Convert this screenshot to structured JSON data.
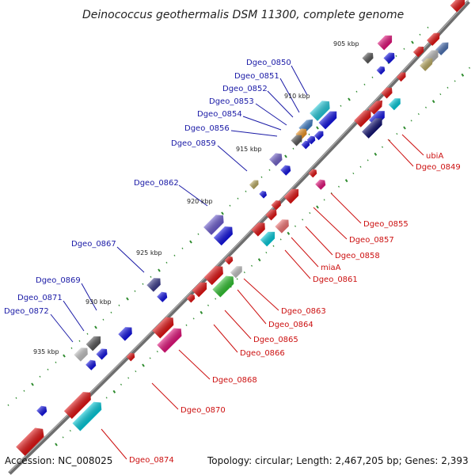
{
  "title": "Deinococcus geothermalis DSM 11300, complete genome",
  "footer": {
    "accession": "Accession: NC_008025",
    "summary": "Topology: circular; Length: 2,467,205 bp; Genes: 2,393"
  },
  "kbp_marks": [
    "905 kbp",
    "910 kbp",
    "915 kbp",
    "920 kbp",
    "925 kbp",
    "930 kbp",
    "935 kbp"
  ],
  "labels_minus": [
    "Dgeo_0850",
    "Dgeo_0851",
    "Dgeo_0852",
    "Dgeo_0853",
    "Dgeo_0854",
    "Dgeo_0856",
    "Dgeo_0859",
    "Dgeo_0862",
    "Dgeo_0867",
    "Dgeo_0869",
    "Dgeo_0871",
    "Dgeo_0872"
  ],
  "labels_plus": [
    "ubiA",
    "Dgeo_0849",
    "Dgeo_0855",
    "Dgeo_0857",
    "Dgeo_0858",
    "miaA",
    "Dgeo_0861",
    "Dgeo_0863",
    "Dgeo_0864",
    "Dgeo_0865",
    "Dgeo_0866",
    "Dgeo_0868",
    "Dgeo_0870",
    "Dgeo_0874"
  ],
  "colors": {
    "backbone": "#6e6e6e",
    "plus_strand": "#e01010",
    "minus_strand": "#1010e0",
    "label_plus": "#cc1010",
    "label_minus": "#1a1aa6",
    "tick_major": "#2e8b2e"
  }
}
